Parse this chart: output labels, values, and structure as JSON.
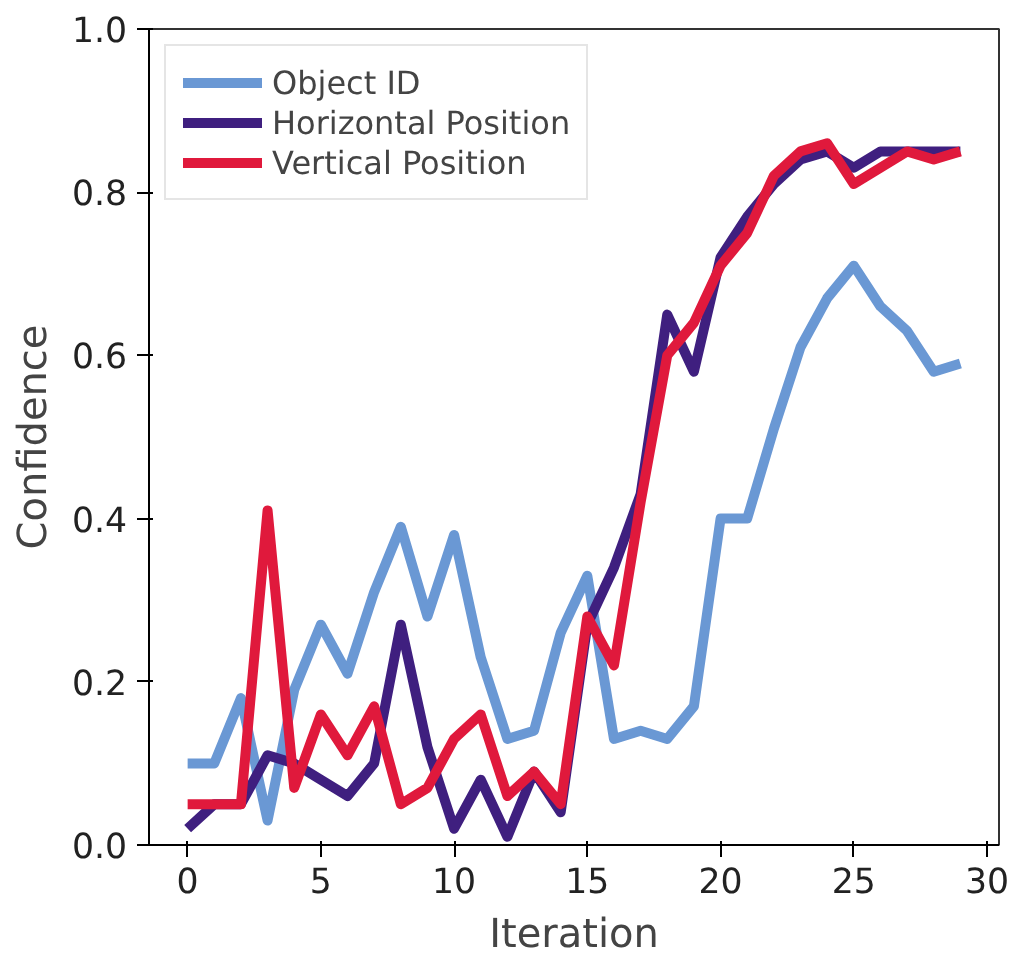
{
  "chart_data": {
    "type": "line",
    "xlabel": "Iteration",
    "ylabel": "Confidence",
    "x": [
      0,
      1,
      2,
      3,
      4,
      5,
      6,
      7,
      8,
      9,
      10,
      11,
      12,
      13,
      14,
      15,
      16,
      17,
      18,
      19,
      20,
      21,
      22,
      23,
      24,
      25,
      26,
      27,
      28,
      29
    ],
    "series": [
      {
        "name": "Object ID",
        "color": "#6a98d4",
        "values": [
          0.1,
          0.1,
          0.18,
          0.03,
          0.19,
          0.27,
          0.21,
          0.31,
          0.39,
          0.28,
          0.38,
          0.23,
          0.13,
          0.14,
          0.26,
          0.33,
          0.13,
          0.14,
          0.13,
          0.17,
          0.4,
          0.4,
          0.51,
          0.61,
          0.67,
          0.71,
          0.66,
          0.63,
          0.58,
          0.59
        ]
      },
      {
        "name": "Horizontal Position",
        "color": "#3f1f7f",
        "values": [
          0.02,
          0.05,
          0.05,
          0.11,
          0.1,
          0.08,
          0.06,
          0.1,
          0.27,
          0.12,
          0.02,
          0.08,
          0.01,
          0.09,
          0.04,
          0.27,
          0.34,
          0.43,
          0.65,
          0.58,
          0.72,
          0.77,
          0.81,
          0.84,
          0.85,
          0.83,
          0.85,
          0.85,
          0.85,
          0.85
        ]
      },
      {
        "name": "Vertical Position",
        "color": "#e0193c",
        "values": [
          0.05,
          0.05,
          0.05,
          0.41,
          0.07,
          0.16,
          0.11,
          0.17,
          0.05,
          0.07,
          0.13,
          0.16,
          0.06,
          0.09,
          0.05,
          0.28,
          0.22,
          0.42,
          0.6,
          0.64,
          0.71,
          0.75,
          0.82,
          0.85,
          0.86,
          0.81,
          0.83,
          0.85,
          0.84,
          0.85
        ]
      }
    ],
    "xlim": [
      -1.45,
      30.45
    ],
    "ylim": [
      0,
      1
    ],
    "xticks": [
      0,
      5,
      10,
      15,
      20,
      25,
      30
    ],
    "yticks": [
      {
        "value": 0,
        "label": "0.0"
      },
      0.2,
      0.4,
      0.6,
      0.8,
      {
        "value": 1,
        "label": "1.0"
      }
    ],
    "grid": false,
    "legend": "top left",
    "line_style": "solid",
    "marker": "none"
  }
}
